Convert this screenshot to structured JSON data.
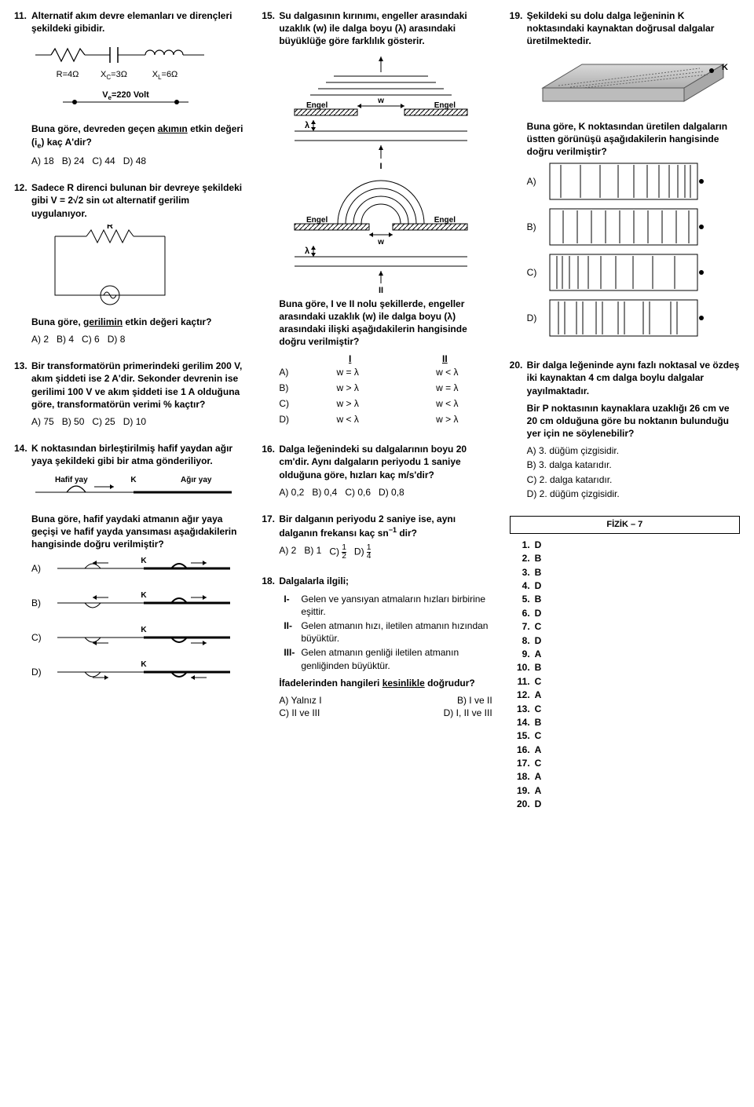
{
  "col1": {
    "q11": {
      "num": "11.",
      "text": "Alternatif akım devre elemanları ve dirençleri şekildeki gibidir.",
      "circuit": {
        "R": "R=4Ω",
        "XC": "X_C=3Ω",
        "XL": "X_L=6Ω",
        "V": "V_e=220 Volt"
      },
      "text2": "Buna göre, devreden geçen ",
      "text2_u": "akımın",
      "text2_after": " etkin değeri (i_e) kaç A'dir?",
      "opts": [
        "A) 18",
        "B) 24",
        "C) 44",
        "D) 48"
      ]
    },
    "q12": {
      "num": "12.",
      "text": "Sadece R direnci bulunan bir devreye şekildeki gibi V = 2√2 sin ωt alternatif gerilim uygulanıyor.",
      "R": "R",
      "text2": "Buna göre, ",
      "text2_u": "gerilimin",
      "text2_after": " etkin değeri kaçtır?",
      "opts": [
        "A) 2",
        "B) 4",
        "C) 6",
        "D) 8"
      ]
    },
    "q13": {
      "num": "13.",
      "text": "Bir transformatörün primerindeki gerilim 200 V, akım şiddeti ise 2 A'dir. Sekonder devrenin ise gerilimi 100 V ve akım şiddeti ise 1 A olduğuna göre, transformatörün verimi % kaçtır?",
      "opts": [
        "A) 75",
        "B) 50",
        "C) 25",
        "D) 10"
      ]
    },
    "q14": {
      "num": "14.",
      "text": "K noktasından birleştirilmiş hafif yaydan ağır yaya şekildeki gibi bir atma gönderiliyor.",
      "labels": {
        "light": "Hafif yay",
        "K": "K",
        "heavy": "Ağır yay"
      },
      "text2": "Buna göre, hafif yaydaki atmanın ağır yaya geçişi ve hafif yayda yansıması aşağıdakilerin hangisinde doğru verilmiştir?",
      "opt_labels": [
        "A)",
        "B)",
        "C)",
        "D)"
      ]
    }
  },
  "col2": {
    "q15": {
      "num": "15.",
      "text": "Su dalgasının kırınımı, engeller arasındaki uzaklık (w) ile dalga boyu (λ) arasındaki büyüklüğe göre farklılık gösterir.",
      "labels": {
        "Engel": "Engel",
        "w": "w",
        "lambda": "λ",
        "I": "I",
        "II": "II"
      },
      "text2": "Buna göre, I ve II nolu şekillerde, engeller arasındaki uzaklık (w) ile dalga boyu (λ) arasındaki ilişki aşağıdakilerin hangisinde doğru verilmiştir?",
      "headers": [
        "I",
        "II"
      ],
      "rows": [
        {
          "lbl": "A)",
          "c1": "w = λ",
          "c2": "w < λ"
        },
        {
          "lbl": "B)",
          "c1": "w > λ",
          "c2": "w = λ"
        },
        {
          "lbl": "C)",
          "c1": "w > λ",
          "c2": "w < λ"
        },
        {
          "lbl": "D)",
          "c1": "w < λ",
          "c2": "w > λ"
        }
      ]
    },
    "q16": {
      "num": "16.",
      "text": "Dalga leğenindeki su dalgalarının boyu 20 cm'dir. Aynı dalgaların periyodu 1 saniye olduğuna göre, hızları kaç m/s'dir?",
      "opts": [
        "A) 0,2",
        "B) 0,4",
        "C) 0,6",
        "D) 0,8"
      ]
    },
    "q17": {
      "num": "17.",
      "text": "Bir dalganın periyodu 2 saniye ise, aynı dalganın frekansı kaç sn⁻¹ dir?",
      "opts": [
        "A) 2",
        "B) 1",
        "C) ½",
        "D) ¼"
      ]
    },
    "q18": {
      "num": "18.",
      "text": "Dalgalarla ilgili;",
      "s1": "Gelen ve yansıyan atmaların hızları birbirine eşittir.",
      "s2": "Gelen atmanın hızı, iletilen atmanın hızından büyüktür.",
      "s3": "Gelen atmanın genliği iletilen atmanın genliğinden büyüktür.",
      "text2": "İfadelerinden hangileri ",
      "text2_u": "kesinlikle",
      "text2_after": " doğrudur?",
      "opts_grid": [
        [
          "A) Yalnız I",
          "B) I ve II"
        ],
        [
          "C) II ve III",
          "D) I, II ve III"
        ]
      ]
    }
  },
  "col3": {
    "q19": {
      "num": "19.",
      "text": "Şekildeki su dolu dalga leğeninin K noktasındaki kaynaktan doğrusal dalgalar üretilmektedir.",
      "K": "K",
      "text2": "Buna göre, K noktasından üretilen dalgaların üstten görünüşü aşağıdakilerin hangisinde doğru verilmiştir?",
      "opt_labels": [
        "A)",
        "B)",
        "C)",
        "D)"
      ]
    },
    "q20": {
      "num": "20.",
      "text": "Bir dalga leğeninde aynı fazlı noktasal ve özdeş iki kaynaktan 4 cm dalga boylu dalgalar yayılmaktadır.",
      "text2": "Bir P noktasının kaynaklara uzaklığı 26 cm ve 20 cm olduğuna göre bu noktanın bulunduğu yer için ne söylenebilir?",
      "opts": [
        "A) 3. düğüm çizgisidir.",
        "B) 3. dalga katarıdır.",
        "C) 2. dalga katarıdır.",
        "D) 2. düğüm çizgisidir."
      ]
    },
    "answers": {
      "title": "FİZİK – 7",
      "list": [
        [
          "1.",
          "D"
        ],
        [
          "2.",
          "B"
        ],
        [
          "3.",
          "B"
        ],
        [
          "4.",
          "D"
        ],
        [
          "5.",
          "B"
        ],
        [
          "6.",
          "D"
        ],
        [
          "7.",
          "C"
        ],
        [
          "8.",
          "D"
        ],
        [
          "9.",
          "A"
        ],
        [
          "10.",
          "B"
        ],
        [
          "11.",
          "C"
        ],
        [
          "12.",
          "A"
        ],
        [
          "13.",
          "C"
        ],
        [
          "14.",
          "B"
        ],
        [
          "15.",
          "C"
        ],
        [
          "16.",
          "A"
        ],
        [
          "17.",
          "C"
        ],
        [
          "18.",
          "A"
        ],
        [
          "19.",
          "A"
        ],
        [
          "20.",
          "D"
        ]
      ]
    }
  }
}
